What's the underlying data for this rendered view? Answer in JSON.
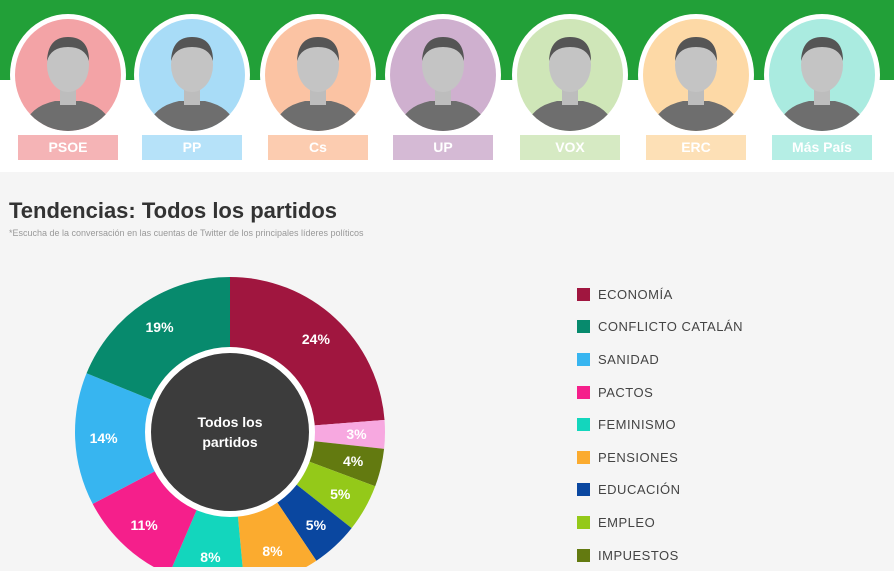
{
  "parties": [
    {
      "name": "PSOE",
      "color": "#f5b4b6",
      "photo_bg": "#f3a3a6"
    },
    {
      "name": "PP",
      "color": "#b6e2f9",
      "photo_bg": "#a8dcf7"
    },
    {
      "name": "Cs",
      "color": "#fcccb0",
      "photo_bg": "#fbc3a3"
    },
    {
      "name": "UP",
      "color": "#d5bad5",
      "photo_bg": "#cfb0cf"
    },
    {
      "name": "VOX",
      "color": "#d6eac3",
      "photo_bg": "#cfe6b8"
    },
    {
      "name": "ERC",
      "color": "#fde0b6",
      "photo_bg": "#fdd9a6"
    },
    {
      "name": "Más País",
      "color": "#b5eee5",
      "photo_bg": "#aaebe0"
    }
  ],
  "title": "Tendencias: Todos los partidos",
  "subtitle": "*Escucha de la conversación en las cuentas de Twitter de los principales líderes políticos",
  "chart_data": {
    "type": "pie",
    "center_label": "Todos los partidos",
    "slices": [
      {
        "label": "ECONOMÍA",
        "value": 24,
        "color": "#a0163f"
      },
      {
        "label": "",
        "value": 3,
        "color": "#f7a8e0"
      },
      {
        "label": "IMPUESTOS",
        "value": 4,
        "color": "#637a10"
      },
      {
        "label": "EMPLEO",
        "value": 5,
        "color": "#94c919"
      },
      {
        "label": "EDUCACIÓN",
        "value": 5,
        "color": "#0a47a0"
      },
      {
        "label": "PENSIONES",
        "value": 8,
        "color": "#fbab2f"
      },
      {
        "label": "FEMINISMO",
        "value": 8,
        "color": "#13d6bd"
      },
      {
        "label": "PACTOS",
        "value": 11,
        "color": "#f51f8b"
      },
      {
        "label": "SANIDAD",
        "value": 14,
        "color": "#37b5f0"
      },
      {
        "label": "CONFLICTO CATALÁN",
        "value": 19,
        "color": "#078a6d"
      }
    ],
    "legend": [
      {
        "label": "ECONOMÍA",
        "color": "#a0163f"
      },
      {
        "label": "CONFLICTO CATALÁN",
        "color": "#078a6d"
      },
      {
        "label": "SANIDAD",
        "color": "#37b5f0"
      },
      {
        "label": "PACTOS",
        "color": "#f51f8b"
      },
      {
        "label": "FEMINISMO",
        "color": "#13d6bd"
      },
      {
        "label": "PENSIONES",
        "color": "#fbab2f"
      },
      {
        "label": "EDUCACIÓN",
        "color": "#0a47a0"
      },
      {
        "label": "EMPLEO",
        "color": "#94c919"
      },
      {
        "label": "IMPUESTOS",
        "color": "#637a10"
      }
    ],
    "legend_position": "right"
  }
}
